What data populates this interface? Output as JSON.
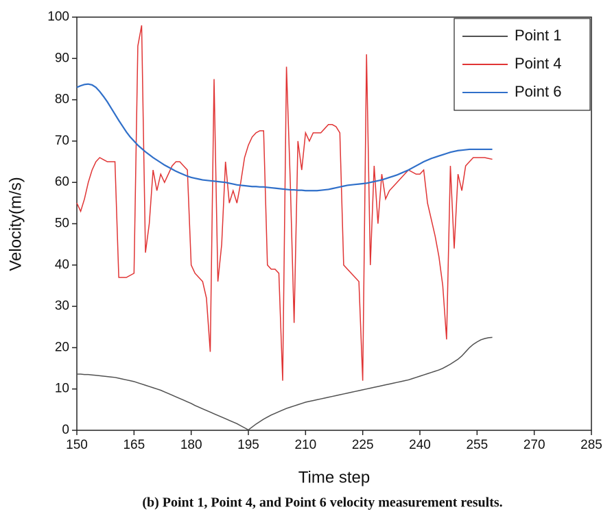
{
  "chart_data": {
    "type": "line",
    "caption": "(b) Point 1, Point 4, and Point 6 velocity measurement results.",
    "xlabel": "Time step",
    "ylabel": "Velocity(m/s)",
    "xlim": [
      150,
      285
    ],
    "xticks": [
      150,
      165,
      180,
      195,
      210,
      225,
      240,
      255,
      270,
      285
    ],
    "ylim": [
      0,
      100
    ],
    "yticks": [
      0,
      10,
      20,
      30,
      40,
      50,
      60,
      70,
      80,
      90,
      100
    ],
    "legend": "upper right",
    "x": [
      150,
      151,
      152,
      153,
      154,
      155,
      156,
      157,
      158,
      159,
      160,
      161,
      162,
      163,
      164,
      165,
      166,
      167,
      168,
      169,
      170,
      171,
      172,
      173,
      174,
      175,
      176,
      177,
      178,
      179,
      180,
      181,
      182,
      183,
      184,
      185,
      186,
      187,
      188,
      189,
      190,
      191,
      192,
      193,
      194,
      195,
      196,
      197,
      198,
      199,
      200,
      201,
      202,
      203,
      204,
      205,
      206,
      207,
      208,
      209,
      210,
      211,
      212,
      213,
      214,
      215,
      216,
      217,
      218,
      219,
      220,
      221,
      222,
      223,
      224,
      225,
      226,
      227,
      228,
      229,
      230,
      231,
      232,
      233,
      234,
      235,
      236,
      237,
      238,
      239,
      240,
      241,
      242,
      243,
      244,
      245,
      246,
      247,
      248,
      249,
      250,
      251,
      252,
      253,
      254,
      255,
      256,
      257,
      258,
      259
    ],
    "series": [
      {
        "name": "Point 1",
        "color": "#505050",
        "values": [
          13.6,
          13.6,
          13.5,
          13.5,
          13.4,
          13.3,
          13.2,
          13.1,
          13.0,
          12.9,
          12.8,
          12.6,
          12.4,
          12.2,
          12.0,
          11.8,
          11.5,
          11.2,
          10.9,
          10.6,
          10.3,
          10.0,
          9.7,
          9.3,
          8.9,
          8.5,
          8.1,
          7.7,
          7.3,
          6.9,
          6.5,
          6.0,
          5.6,
          5.2,
          4.8,
          4.4,
          4.0,
          3.6,
          3.2,
          2.8,
          2.4,
          2.0,
          1.6,
          1.1,
          0.6,
          0.1,
          0.8,
          1.5,
          2.1,
          2.7,
          3.2,
          3.7,
          4.1,
          4.5,
          4.9,
          5.3,
          5.6,
          5.9,
          6.2,
          6.5,
          6.8,
          7.0,
          7.2,
          7.4,
          7.6,
          7.8,
          8.0,
          8.2,
          8.4,
          8.6,
          8.8,
          9.0,
          9.2,
          9.4,
          9.6,
          9.8,
          10.0,
          10.2,
          10.4,
          10.6,
          10.8,
          11.0,
          11.2,
          11.4,
          11.6,
          11.8,
          12.0,
          12.2,
          12.5,
          12.8,
          13.1,
          13.4,
          13.7,
          14.0,
          14.3,
          14.6,
          15.0,
          15.5,
          16.0,
          16.6,
          17.2,
          18.0,
          19.0,
          20.0,
          20.8,
          21.4,
          21.9,
          22.2,
          22.4,
          22.5
        ]
      },
      {
        "name": "Point 4",
        "color": "#e03434",
        "values": [
          55,
          53,
          56,
          60,
          63,
          65,
          66,
          65.5,
          65,
          65,
          65,
          37,
          37,
          37,
          37.5,
          38,
          93,
          98,
          43,
          50,
          63,
          58,
          62,
          60,
          62,
          64,
          65,
          65,
          64,
          63,
          40,
          38,
          37,
          36,
          32,
          19,
          85,
          36,
          45,
          65,
          55,
          58,
          55,
          60,
          66,
          69,
          71,
          72,
          72.5,
          72.5,
          40,
          39,
          39,
          38,
          12,
          88,
          60,
          26,
          70,
          63,
          72,
          70,
          72,
          72,
          72,
          73,
          74,
          74,
          73.5,
          72,
          40,
          39,
          38,
          37,
          36,
          12,
          91,
          40,
          64,
          50,
          62,
          56,
          58,
          59,
          60,
          61,
          62,
          63,
          62.5,
          62,
          62,
          63,
          55,
          51,
          47,
          42,
          35,
          22,
          64,
          44,
          62,
          58,
          64,
          65,
          66,
          66,
          66,
          66,
          65.8,
          65.6
        ]
      },
      {
        "name": "Point 6",
        "color": "#2f6fc9",
        "values": [
          83.0,
          83.4,
          83.7,
          83.8,
          83.6,
          83.0,
          82.0,
          80.8,
          79.5,
          78.0,
          76.5,
          75.0,
          73.6,
          72.2,
          71.0,
          70.0,
          69.0,
          68.2,
          67.4,
          66.7,
          66.0,
          65.4,
          64.8,
          64.2,
          63.7,
          63.2,
          62.7,
          62.3,
          61.9,
          61.5,
          61.2,
          61.0,
          60.8,
          60.6,
          60.5,
          60.4,
          60.3,
          60.2,
          60.1,
          60.0,
          59.8,
          59.6,
          59.4,
          59.3,
          59.2,
          59.1,
          59.0,
          59.0,
          58.9,
          58.9,
          58.8,
          58.7,
          58.6,
          58.5,
          58.4,
          58.3,
          58.2,
          58.2,
          58.1,
          58.1,
          58.0,
          58.0,
          58.0,
          58.0,
          58.1,
          58.2,
          58.3,
          58.5,
          58.7,
          58.9,
          59.1,
          59.3,
          59.4,
          59.5,
          59.6,
          59.7,
          59.8,
          60.0,
          60.2,
          60.4,
          60.6,
          60.9,
          61.2,
          61.5,
          61.8,
          62.2,
          62.6,
          63.0,
          63.5,
          64.0,
          64.5,
          65.0,
          65.4,
          65.8,
          66.1,
          66.4,
          66.7,
          67.0,
          67.3,
          67.5,
          67.7,
          67.8,
          67.9,
          68.0,
          68.0,
          68.0,
          68.0,
          68.0,
          68.0,
          68.0
        ]
      }
    ]
  }
}
